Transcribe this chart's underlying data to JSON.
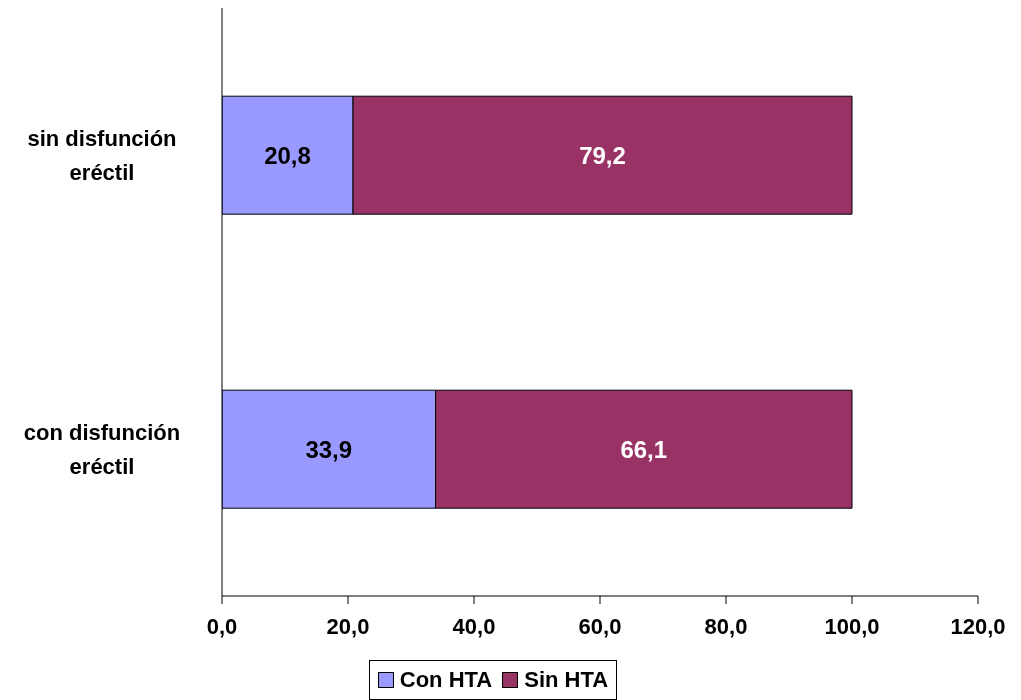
{
  "chart_data": {
    "type": "bar",
    "orientation": "horizontal",
    "stacked": true,
    "categories": [
      "sin disfunción eréctil",
      "con disfunción eréctil"
    ],
    "series": [
      {
        "name": "Con HTA",
        "color": "#9999ff",
        "values": [
          20.8,
          33.9
        ],
        "value_labels": [
          "20,8",
          "33,9"
        ]
      },
      {
        "name": "Sin HTA",
        "color": "#993366",
        "values": [
          79.2,
          66.1
        ],
        "value_labels": [
          "79,2",
          "66,1"
        ]
      }
    ],
    "xlim": [
      0,
      120
    ],
    "xticks": [
      {
        "value": 0,
        "label": "0,0"
      },
      {
        "value": 20,
        "label": "20,0"
      },
      {
        "value": 40,
        "label": "40,0"
      },
      {
        "value": 60,
        "label": "60,0"
      },
      {
        "value": 80,
        "label": "80,0"
      },
      {
        "value": 100,
        "label": "100,0"
      },
      {
        "value": 120,
        "label": "120,0"
      }
    ],
    "grid": false,
    "legend": "bottom"
  }
}
